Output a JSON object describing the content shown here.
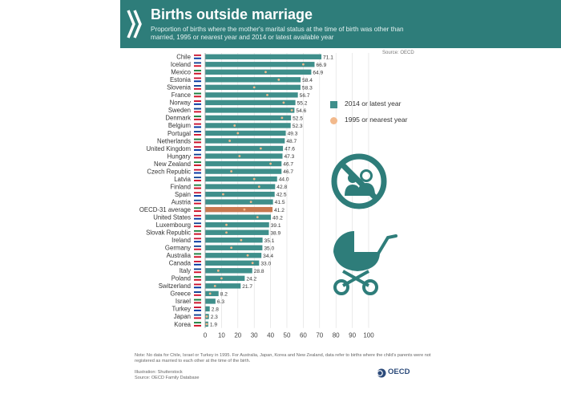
{
  "header": {
    "title": "Births outside marriage",
    "subtitle": "Proportion of births where the mother's marital status at the time of birth was other than married, 1995 or nearest year and 2014 or latest available year",
    "source_top": "Source: OECD"
  },
  "legend": {
    "latest": "2014 or latest year",
    "earlier": "1995 or nearest year"
  },
  "colors": {
    "header_bg": "#2e7d7a",
    "bar": "#3f8f8b",
    "oecd_bar": "#c8784f",
    "dot": "#f2b98c",
    "icon": "#2e7d7a"
  },
  "icons": [
    "chevron-mark-icon",
    "no-wedding-icon",
    "pram-icon",
    "oecd-globe-icon"
  ],
  "footer": {
    "note": "Note: No data for Chile, Israel or Turkey in 1995. For Australia, Japan, Korea and New Zealand, data refer to births where the child's parents were not registered as married to each other at the time of the birth.",
    "illustration": "Illustration: Shutterstock",
    "source": "Source: OECD Family Database",
    "logo": "OECD"
  },
  "chart_data": {
    "type": "bar",
    "orientation": "horizontal",
    "categories": [
      "Chile",
      "Iceland",
      "Mexico",
      "Estonia",
      "Slovenia",
      "France",
      "Norway",
      "Sweden",
      "Denmark",
      "Belgium",
      "Portugal",
      "Netherlands",
      "United Kingdom",
      "Hungary",
      "New Zealand",
      "Czech Republic",
      "Latvia",
      "Finland",
      "Spain",
      "Austria",
      "OECD-31 average",
      "United States",
      "Luxembourg",
      "Slovak Republic",
      "Ireland",
      "Germany",
      "Australia",
      "Canada",
      "Italy",
      "Poland",
      "Switzerland",
      "Greece",
      "Israel",
      "Turkey",
      "Japan",
      "Korea"
    ],
    "series": [
      {
        "name": "2014 or latest year",
        "values": [
          71.1,
          66.9,
          64.9,
          58.4,
          58.3,
          56.7,
          55.2,
          54.6,
          52.5,
          52.3,
          49.3,
          48.7,
          47.6,
          47.3,
          46.7,
          46.7,
          44.0,
          42.8,
          42.5,
          41.5,
          41.2,
          40.2,
          39.1,
          38.9,
          35.1,
          35.0,
          34.4,
          33.0,
          28.8,
          24.2,
          21.7,
          8.2,
          6.3,
          2.8,
          2.3,
          1.9
        ],
        "labels": [
          "71.1",
          "66.9",
          "64.9",
          "58.4",
          "58.3",
          "56.7",
          "55.2",
          "54.6",
          "52.5",
          "52.3",
          "49.3",
          "48.7",
          "47.6",
          "47.3",
          "46.7",
          "46.7",
          "44.0",
          "42.8",
          "42.5",
          "41.5",
          "41.2",
          "40.2",
          "39.1",
          "38.9",
          "35.1",
          "35.0",
          "34.4",
          "33.0",
          "28.8",
          "24.2",
          "21.7",
          "8.2",
          "6.3",
          "2.8",
          "2.3",
          "1.9"
        ]
      },
      {
        "name": "1995 or nearest year",
        "values": [
          null,
          60,
          37,
          45,
          30,
          38,
          48,
          53,
          47,
          18,
          20,
          15,
          34,
          21,
          40,
          16,
          30,
          33,
          11,
          28,
          24,
          32,
          13,
          13,
          22,
          16,
          26,
          29,
          8,
          10,
          6,
          3,
          null,
          null,
          1,
          1
        ]
      }
    ],
    "xlim": [
      0,
      100
    ],
    "xticks": [
      "0",
      "10",
      "20",
      "30",
      "40",
      "50",
      "60",
      "70",
      "80",
      "90",
      "100"
    ],
    "xunit": "%",
    "grid": true
  }
}
